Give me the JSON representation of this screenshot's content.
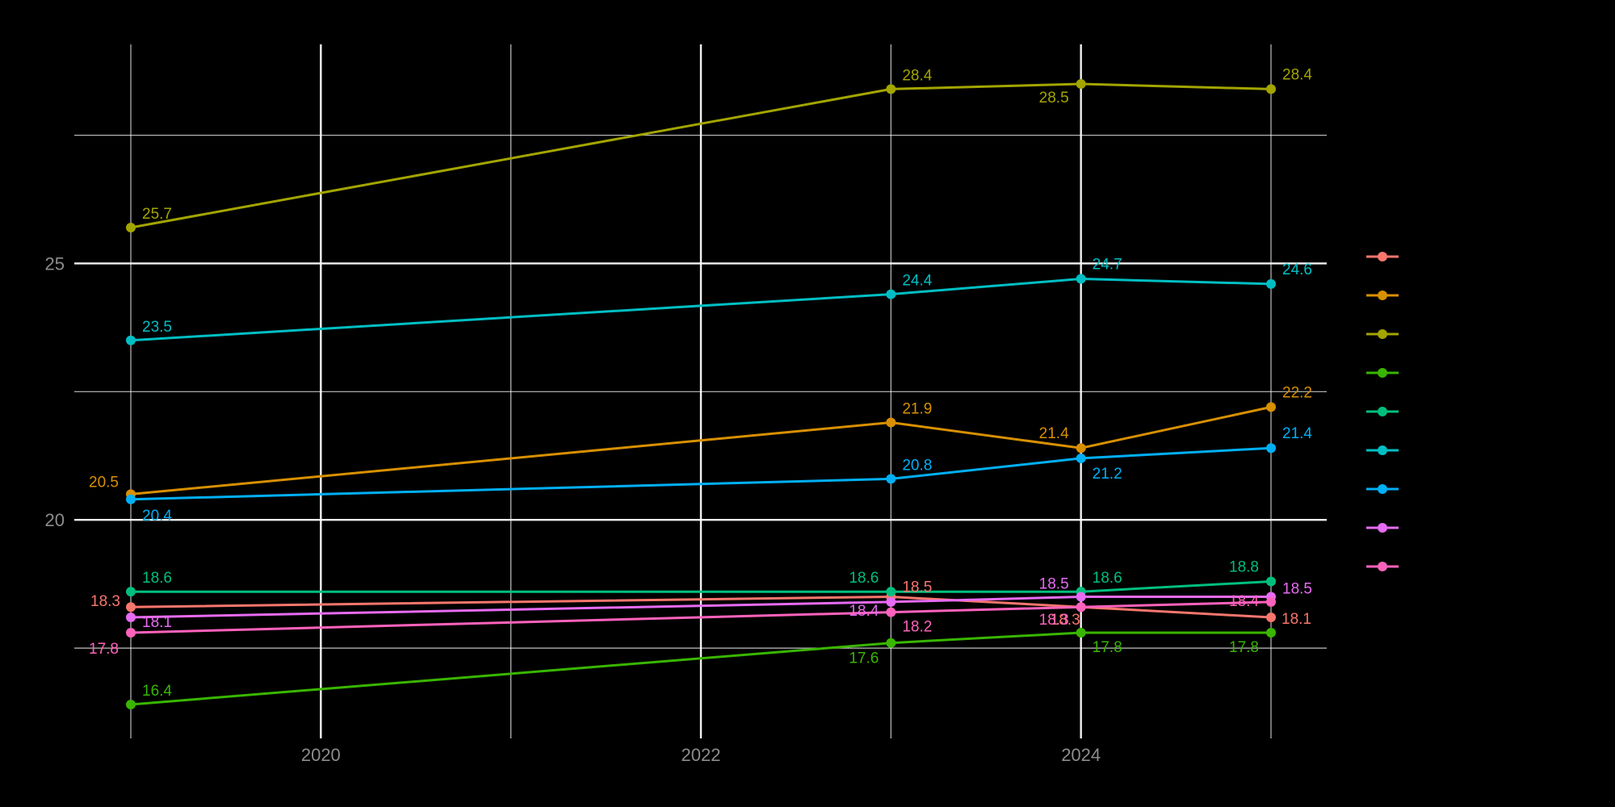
{
  "chart_data": {
    "type": "line",
    "title": "",
    "xlabel": "",
    "ylabel": "",
    "x": [
      2019,
      2023,
      2024,
      2025
    ],
    "x_ticks": [
      2020,
      2022,
      2024
    ],
    "y_ticks": [
      20,
      25
    ],
    "xlim": [
      2019,
      2025
    ],
    "ylim": [
      15.9,
      28.9
    ],
    "grid": true,
    "legend": "right",
    "series": [
      {
        "color": "#F8766D",
        "values": [
          18.3,
          18.5,
          18.3,
          18.1
        ],
        "labels": [
          "18.3",
          "18.5",
          "18.3",
          "18.1"
        ]
      },
      {
        "color": "#D89000",
        "values": [
          20.5,
          21.9,
          21.4,
          22.2
        ],
        "labels": [
          "20.5",
          "21.9",
          "21.4",
          "22.2"
        ]
      },
      {
        "color": "#A3A500",
        "values": [
          25.7,
          28.4,
          28.5,
          28.4
        ],
        "labels": [
          "25.7",
          "28.4",
          "28.5",
          "28.4"
        ]
      },
      {
        "color": "#39B600",
        "values": [
          16.4,
          17.6,
          17.8,
          17.8
        ],
        "labels": [
          "16.4",
          "17.6",
          "17.8",
          "17.8"
        ]
      },
      {
        "color": "#00BF7D",
        "values": [
          18.6,
          18.6,
          18.6,
          18.8
        ],
        "labels": [
          "18.6",
          "18.6",
          "18.6",
          "18.8"
        ]
      },
      {
        "color": "#00BFC4",
        "values": [
          23.5,
          24.4,
          24.7,
          24.6
        ],
        "labels": [
          "23.5",
          "24.4",
          "24.7",
          "24.6"
        ]
      },
      {
        "color": "#00B0F6",
        "values": [
          20.4,
          20.8,
          21.2,
          21.4
        ],
        "labels": [
          "20.4",
          "20.8",
          "21.2",
          "21.4"
        ]
      },
      {
        "color": "#E76BF3",
        "values": [
          18.1,
          18.4,
          18.5,
          18.5
        ],
        "labels": [
          "18.1",
          "18.4",
          "18.5",
          "18.5"
        ]
      },
      {
        "color": "#FF62BC",
        "values": [
          17.8,
          18.2,
          18.3,
          18.4
        ],
        "labels": [
          "17.8",
          "18.2",
          "18.3",
          "18.4"
        ]
      }
    ]
  }
}
